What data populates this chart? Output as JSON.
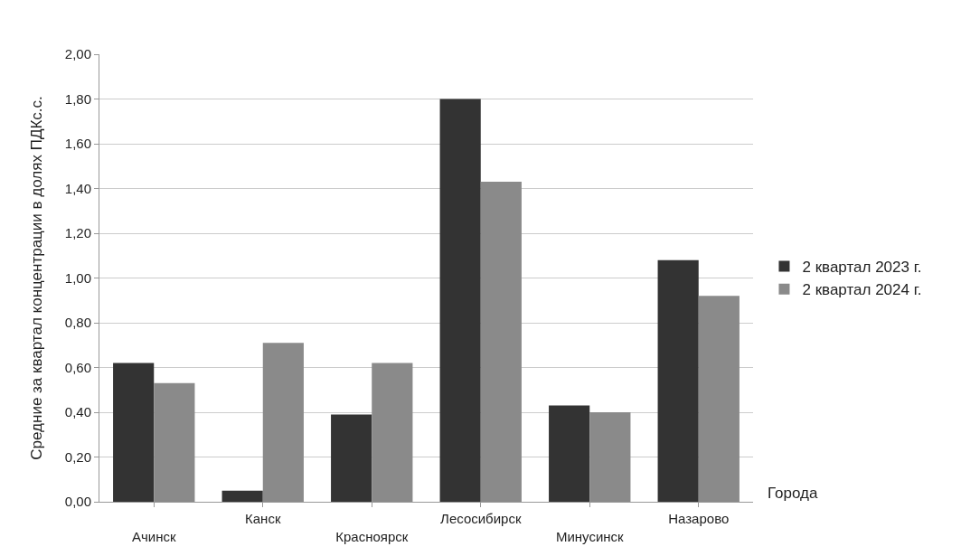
{
  "chart_data": {
    "type": "bar",
    "ylabel": "Средние за квартал концентрации в долях ПДКс.с.",
    "xlabel": "Города",
    "categories": [
      "Ачинск",
      "Канск",
      "Красноярск",
      "Лесосибирск",
      "Минусинск",
      "Назарово"
    ],
    "series": [
      {
        "name": "2 квартал 2023 г.",
        "color": "#333333",
        "values": [
          0.62,
          0.05,
          0.39,
          1.8,
          0.43,
          1.08
        ]
      },
      {
        "name": "2 квартал 2024 г.",
        "color": "#8a8a8a",
        "values": [
          0.53,
          0.71,
          0.62,
          1.43,
          0.4,
          0.92
        ]
      }
    ],
    "ylim": [
      0,
      2
    ],
    "yticks": [
      {
        "value": 0,
        "label": "0,00"
      },
      {
        "value": 0.2,
        "label": "0,20"
      },
      {
        "value": 0.4,
        "label": "0,40"
      },
      {
        "value": 0.6,
        "label": "0,60"
      },
      {
        "value": 0.8,
        "label": "0,80"
      },
      {
        "value": 1.0,
        "label": "1,00"
      },
      {
        "value": 1.2,
        "label": "1,20"
      },
      {
        "value": 1.4,
        "label": "1,40"
      },
      {
        "value": 1.6,
        "label": "1,60"
      },
      {
        "value": 1.8,
        "label": "1,80"
      },
      {
        "value": 2.0,
        "label": "2,00"
      }
    ],
    "grid": "y",
    "legend": "right"
  }
}
